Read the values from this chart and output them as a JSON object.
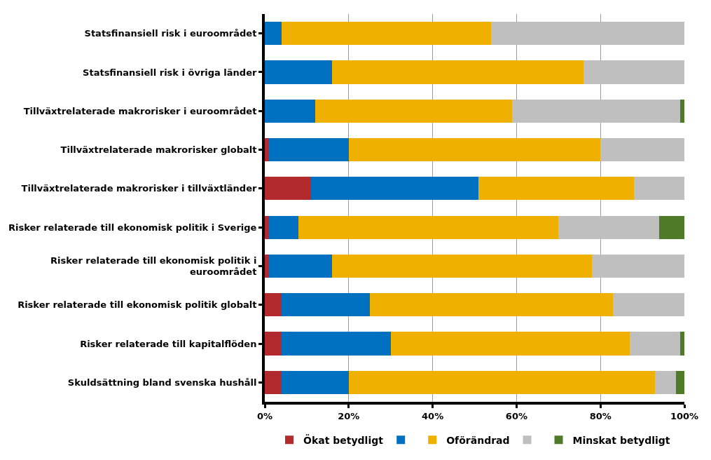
{
  "chart_data": {
    "type": "bar",
    "orientation": "horizontal",
    "stacked": true,
    "categories": [
      "Statsfinansiell risk i euroområdet",
      "Statsfinansiell risk i övriga länder",
      "Tillväxtrelaterade makrorisker i euroområdet",
      "Tillväxtrelaterade makrorisker globalt",
      "Tillväxtrelaterade makrorisker i tillväxtländer",
      "Risker relaterade till ekonomisk politik i Sverige",
      "Risker relaterade till ekonomisk politik i\neuroområdet",
      "Risker relaterade till ekonomisk politik globalt",
      "Risker relaterade till kapitalflöden",
      "Skuldsättning bland svenska hushåll"
    ],
    "series": [
      {
        "name": "Ökat betydligt",
        "color": "#b22a2e",
        "values": [
          0,
          0,
          0,
          1,
          11,
          1,
          1,
          4,
          4,
          4
        ]
      },
      {
        "color": "#0070c0",
        "values": [
          4,
          16,
          12,
          19,
          40,
          7,
          15,
          21,
          26,
          16
        ]
      },
      {
        "name": "Oförändrad",
        "color": "#f0b000",
        "values": [
          50,
          60,
          47,
          60,
          37,
          62,
          62,
          58,
          57,
          73
        ]
      },
      {
        "color": "#bfbfbf",
        "values": [
          46,
          24,
          40,
          20,
          12,
          24,
          22,
          17,
          12,
          5
        ]
      },
      {
        "name": "Minskat betydligt",
        "color": "#4f7a28",
        "values": [
          0,
          0,
          1,
          0,
          0,
          6,
          0,
          0,
          1,
          2
        ]
      }
    ],
    "xlim": [
      0,
      100
    ],
    "xticks": [
      {
        "value": 0,
        "label": "0%"
      },
      {
        "value": 20,
        "label": "20%"
      },
      {
        "value": 40,
        "label": "40%"
      },
      {
        "value": 60,
        "label": "60%"
      },
      {
        "value": 80,
        "label": "80%"
      },
      {
        "value": 100,
        "label": "100%"
      }
    ],
    "grid": "x",
    "legend": "bottom"
  }
}
